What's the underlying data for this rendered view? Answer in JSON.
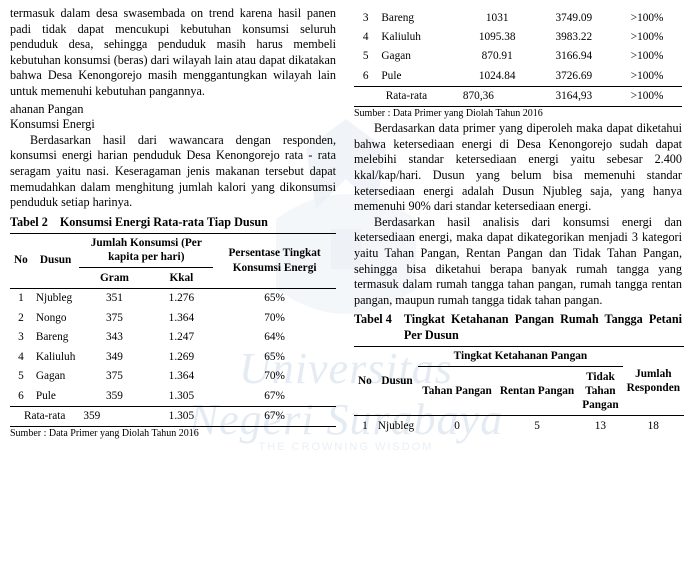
{
  "leftCol": {
    "para1": "termasuk dalam desa swasembada on trend karena hasil panen padi tidak dapat mencukupi kebutuhan konsumsi seluruh penduduk desa, sehingga penduduk masih harus membeli kebutuhan konsumsi (beras) dari wilayah lain atau dapat dikatakan bahwa Desa Kenongorejo masih menggantungkan wilayah lain untuk memenuhi kebutuhan pangannya.",
    "head1": "ahanan Pangan",
    "head2": "Konsumsi Energi",
    "para2": "Berdasarkan hasil dari wawancara dengan responden, konsumsi energi harian penduduk Desa Kenongorejo rata - rata seragam yaitu nasi. Keseragaman jenis makanan tersebut dapat memudahkan dalam menghitung jumlah kalori yang dikonsumsi penduduk setiap harinya.",
    "table2_caption_label": "Tabel 2",
    "table2_caption_title": "Konsumsi Energi Rata-rata Tiap Dusun",
    "table2": {
      "head_no": "No",
      "head_dusun": "Dusun",
      "head_jumlah": "Jumlah Konsumsi (Per kapita per hari)",
      "head_gram": "Gram",
      "head_kkal": "Kkal",
      "head_persen": "Persentase Tingkat Konsumsi Energi",
      "rows": [
        {
          "no": "1",
          "dusun": "Njubleg",
          "gram": "351",
          "kkal": "1.276",
          "pct": "65%"
        },
        {
          "no": "2",
          "dusun": "Nongo",
          "gram": "375",
          "kkal": "1.364",
          "pct": "70%"
        },
        {
          "no": "3",
          "dusun": "Bareng",
          "gram": "343",
          "kkal": "1.247",
          "pct": "64%"
        },
        {
          "no": "4",
          "dusun": "Kaliuluh",
          "gram": "349",
          "kkal": "1.269",
          "pct": "65%"
        },
        {
          "no": "5",
          "dusun": "Gagan",
          "gram": "375",
          "kkal": "1.364",
          "pct": "70%"
        },
        {
          "no": "6",
          "dusun": "Pule",
          "gram": "359",
          "kkal": "1.305",
          "pct": "67%"
        }
      ],
      "avg_label": "Rata-rata",
      "avg_gram": "359",
      "avg_kkal": "1.305",
      "avg_pct": "67%"
    },
    "src": "Sumber : Data Primer yang Diolah Tahun 2016"
  },
  "rightCol": {
    "table3": {
      "rows": [
        {
          "no": "3",
          "dusun": "Bareng",
          "a": "1031",
          "b": "3749.09",
          "c": ">100%"
        },
        {
          "no": "4",
          "dusun": "Kaliuluh",
          "a": "1095.38",
          "b": "3983.22",
          "c": ">100%"
        },
        {
          "no": "5",
          "dusun": "Gagan",
          "a": "870.91",
          "b": "3166.94",
          "c": ">100%"
        },
        {
          "no": "6",
          "dusun": "Pule",
          "a": "1024.84",
          "b": "3726.69",
          "c": ">100%"
        }
      ],
      "avg_label": "Rata-rata",
      "avg_a": "870,36",
      "avg_b": "3164,93",
      "avg_c": ">100%"
    },
    "src": "Sumber : Data Primer yang Diolah Tahun 2016",
    "para1": "Berdasarkan data primer yang diperoleh maka dapat diketahui bahwa ketersediaan energi di Desa Kenongorejo sudah dapat melebihi standar ketersediaan energi yaitu sebesar 2.400 kkal/kap/hari. Dusun yang belum bisa memenuhi standar ketersediaan energi adalah Dusun Njubleg saja, yang hanya memenuhi 90% dari standar ketersediaan energi.",
    "para2": "Berdasarkan hasil analisis dari konsumsi energi dan ketersediaan energi, maka dapat dikategorikan menjadi 3 kategori yaitu Tahan Pangan, Rentan Pangan dan Tidak Tahan Pangan, sehingga bisa diketahui berapa banyak rumah tangga yang termasuk dalam rumah tangga tahan pangan, rumah tangga rentan pangan, maupun rumah tangga tidak tahan pangan.",
    "table4_caption_label": "Tabel 4",
    "table4_caption_title": "Tingkat Ketahanan Pangan Rumah Tangga Petani Per Dusun",
    "table4": {
      "head_no": "No",
      "head_dusun": "Dusun",
      "head_group": "Tingkat Ketahanan Pangan",
      "head_tahan": "Tahan Pangan",
      "head_rentan": "Rentan Pangan",
      "head_tidak": "Tidak Tahan Pangan",
      "head_jumlah": "Jumlah Responden",
      "rows": [
        {
          "no": "1",
          "dusun": "Njubleg",
          "a": "0",
          "b": "5",
          "c": "13",
          "d": "18"
        }
      ]
    }
  },
  "watermark": {
    "big": "Universitas Negeri Surabaya",
    "small": "THE CROWNING WISDOM"
  },
  "colors": {
    "text": "#000000",
    "watermark": "#8aa7c9",
    "bg": "#ffffff"
  }
}
